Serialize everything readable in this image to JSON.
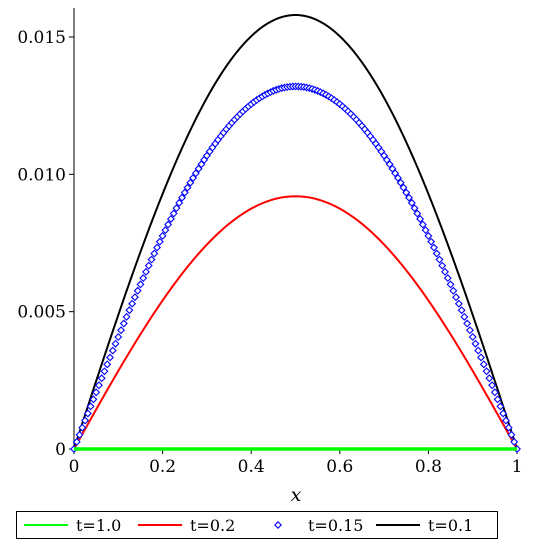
{
  "chart_data": {
    "type": "line",
    "title": "",
    "xlabel": "x",
    "ylabel": "",
    "xlim": [
      0,
      1
    ],
    "ylim": [
      0,
      0.0158
    ],
    "x_ticks": [
      {
        "value": 0,
        "label": "0"
      },
      {
        "value": 0.2,
        "label": "0.2"
      },
      {
        "value": 0.4,
        "label": "0.4"
      },
      {
        "value": 0.6,
        "label": "0.6"
      },
      {
        "value": 0.8,
        "label": "0.8"
      },
      {
        "value": 1,
        "label": "1"
      }
    ],
    "y_ticks": [
      {
        "value": 0,
        "label": "0"
      },
      {
        "value": 0.005,
        "label": "0.005"
      },
      {
        "value": 0.01,
        "label": "0.010"
      },
      {
        "value": 0.015,
        "label": "0.015"
      }
    ],
    "grid": false,
    "legend_position": "bottom",
    "series": [
      {
        "name": "t=1.0",
        "color": "#00ff00",
        "style": "line",
        "amplitude": 0.0
      },
      {
        "name": "t=0.2",
        "color": "#ff0000",
        "style": "line",
        "amplitude": 0.0092
      },
      {
        "name": "t=0.15",
        "color": "#0000ff",
        "style": "diamond-markers",
        "amplitude": 0.0132
      },
      {
        "name": "t=0.1",
        "color": "#000000",
        "style": "line",
        "amplitude": 0.0158
      }
    ],
    "curve_shape": "sin(pi*x)"
  }
}
